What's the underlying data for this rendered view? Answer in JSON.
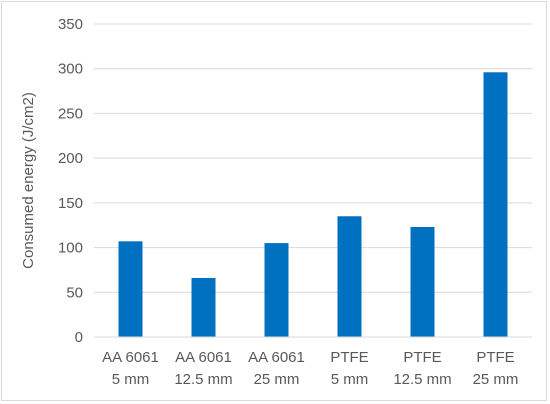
{
  "chart_data": {
    "type": "bar",
    "title": "",
    "xlabel": "",
    "ylabel": "Consumed energy (J/cm2)",
    "ylim": [
      0,
      350
    ],
    "yticks": [
      0,
      50,
      100,
      150,
      200,
      250,
      300,
      350
    ],
    "grid": true,
    "legend": "none",
    "bar_color": "#0070c0",
    "categories": [
      [
        "AA 6061",
        "5 mm"
      ],
      [
        "AA 6061",
        "12.5 mm"
      ],
      [
        "AA 6061",
        "25 mm"
      ],
      [
        "PTFE",
        "5 mm"
      ],
      [
        "PTFE",
        "12.5 mm"
      ],
      [
        "PTFE",
        "25 mm"
      ]
    ],
    "values": [
      107,
      66,
      105,
      135,
      123,
      296
    ]
  }
}
